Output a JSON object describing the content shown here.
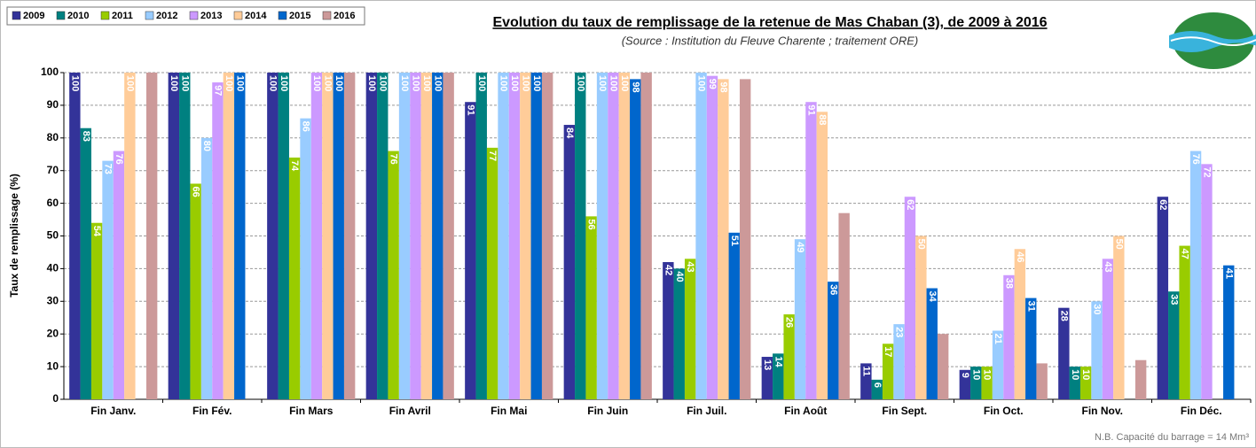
{
  "chart_data": {
    "type": "bar",
    "title": "Evolution du taux de remplissage de la retenue de Mas Chaban (3), de 2009 à 2016",
    "subtitle": "(Source : Institution du Fleuve Charente ; traitement ORE)",
    "y_label": "Taux de remplissage (%)",
    "note": "N.B. Capacité du barrage = 14 Mm³",
    "categories": [
      "Fin Janv.",
      "Fin Fév.",
      "Fin Mars",
      "Fin Avril",
      "Fin Mai",
      "Fin Juin",
      "Fin Juil.",
      "Fin Août",
      "Fin Sept.",
      "Fin Oct.",
      "Fin Nov.",
      "Fin Déc."
    ],
    "series": [
      {
        "name": "2009",
        "color": "#333399",
        "data_labels": true,
        "values": [
          100,
          100,
          100,
          100,
          91,
          84,
          42,
          13,
          11,
          9,
          28,
          62
        ]
      },
      {
        "name": "2010",
        "color": "#008080",
        "data_labels": true,
        "values": [
          83,
          100,
          100,
          100,
          100,
          100,
          40,
          14,
          6,
          10,
          10,
          33
        ]
      },
      {
        "name": "2011",
        "color": "#99cc00",
        "data_labels": true,
        "values": [
          54,
          66,
          74,
          76,
          77,
          56,
          43,
          26,
          17,
          10,
          10,
          47
        ]
      },
      {
        "name": "2012",
        "color": "#99ccff",
        "data_labels": true,
        "values": [
          73,
          80,
          86,
          100,
          100,
          100,
          100,
          49,
          23,
          21,
          30,
          76
        ]
      },
      {
        "name": "2013",
        "color": "#cc99ff",
        "data_labels": true,
        "values": [
          76,
          97,
          100,
          100,
          100,
          100,
          99,
          91,
          62,
          38,
          43,
          72
        ]
      },
      {
        "name": "2014",
        "color": "#ffcc99",
        "data_labels": true,
        "values": [
          100,
          100,
          100,
          100,
          100,
          100,
          98,
          88,
          50,
          46,
          50,
          null
        ]
      },
      {
        "name": "2015",
        "color": "#0066cc",
        "data_labels": true,
        "values": [
          null,
          100,
          100,
          100,
          100,
          98,
          51,
          36,
          34,
          31,
          null,
          41
        ]
      },
      {
        "name": "2016",
        "color": "#cc9999",
        "data_labels": false,
        "values": [
          100,
          null,
          100,
          100,
          100,
          100,
          98,
          57,
          20,
          11,
          12,
          null
        ]
      }
    ],
    "ylim": [
      0,
      100
    ],
    "yticks": [
      0,
      10,
      20,
      30,
      40,
      50,
      60,
      70,
      80,
      90,
      100
    ],
    "grid": true,
    "legend": "top-left"
  }
}
